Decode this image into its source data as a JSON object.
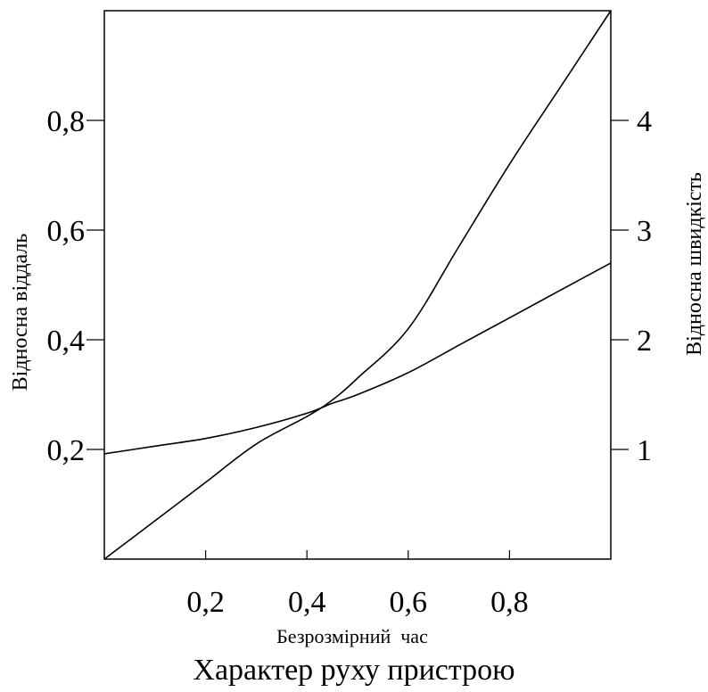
{
  "chart_data": {
    "type": "line",
    "title": "Характер руху пристрою",
    "xlabel": "Безрозмірний  час",
    "ylabel_left": "Відносна віддаль",
    "ylabel_right": "Відносна швидкість",
    "xlim": [
      0,
      1
    ],
    "ylim_left": [
      0,
      1
    ],
    "ylim_right": [
      0,
      5
    ],
    "x_ticks": [
      0.2,
      0.4,
      0.6,
      0.8
    ],
    "x_tick_labels": [
      "0,2",
      "0,4",
      "0,6",
      "0,8"
    ],
    "y_left_ticks": [
      0.2,
      0.4,
      0.6,
      0.8
    ],
    "y_left_tick_labels": [
      "0,2",
      "0,4",
      "0,6",
      "0,8"
    ],
    "y_right_ticks": [
      1,
      2,
      3,
      4
    ],
    "y_right_tick_labels": [
      "1",
      "2",
      "3",
      "4"
    ],
    "grid": false,
    "series": [
      {
        "axis": "left",
        "x": [
          0,
          0.1,
          0.2,
          0.3,
          0.4,
          0.45,
          0.5,
          0.6,
          0.7,
          0.8,
          0.9,
          1.0
        ],
        "y": [
          0,
          0.07,
          0.14,
          0.21,
          0.26,
          0.29,
          0.33,
          0.42,
          0.57,
          0.72,
          0.86,
          1.0
        ]
      },
      {
        "axis": "right",
        "x": [
          0,
          0.1,
          0.2,
          0.3,
          0.4,
          0.45,
          0.5,
          0.6,
          0.7,
          0.8,
          0.9,
          1.0
        ],
        "y": [
          0.96,
          1.03,
          1.1,
          1.2,
          1.33,
          1.42,
          1.5,
          1.7,
          1.95,
          2.2,
          2.45,
          2.7
        ]
      }
    ]
  }
}
